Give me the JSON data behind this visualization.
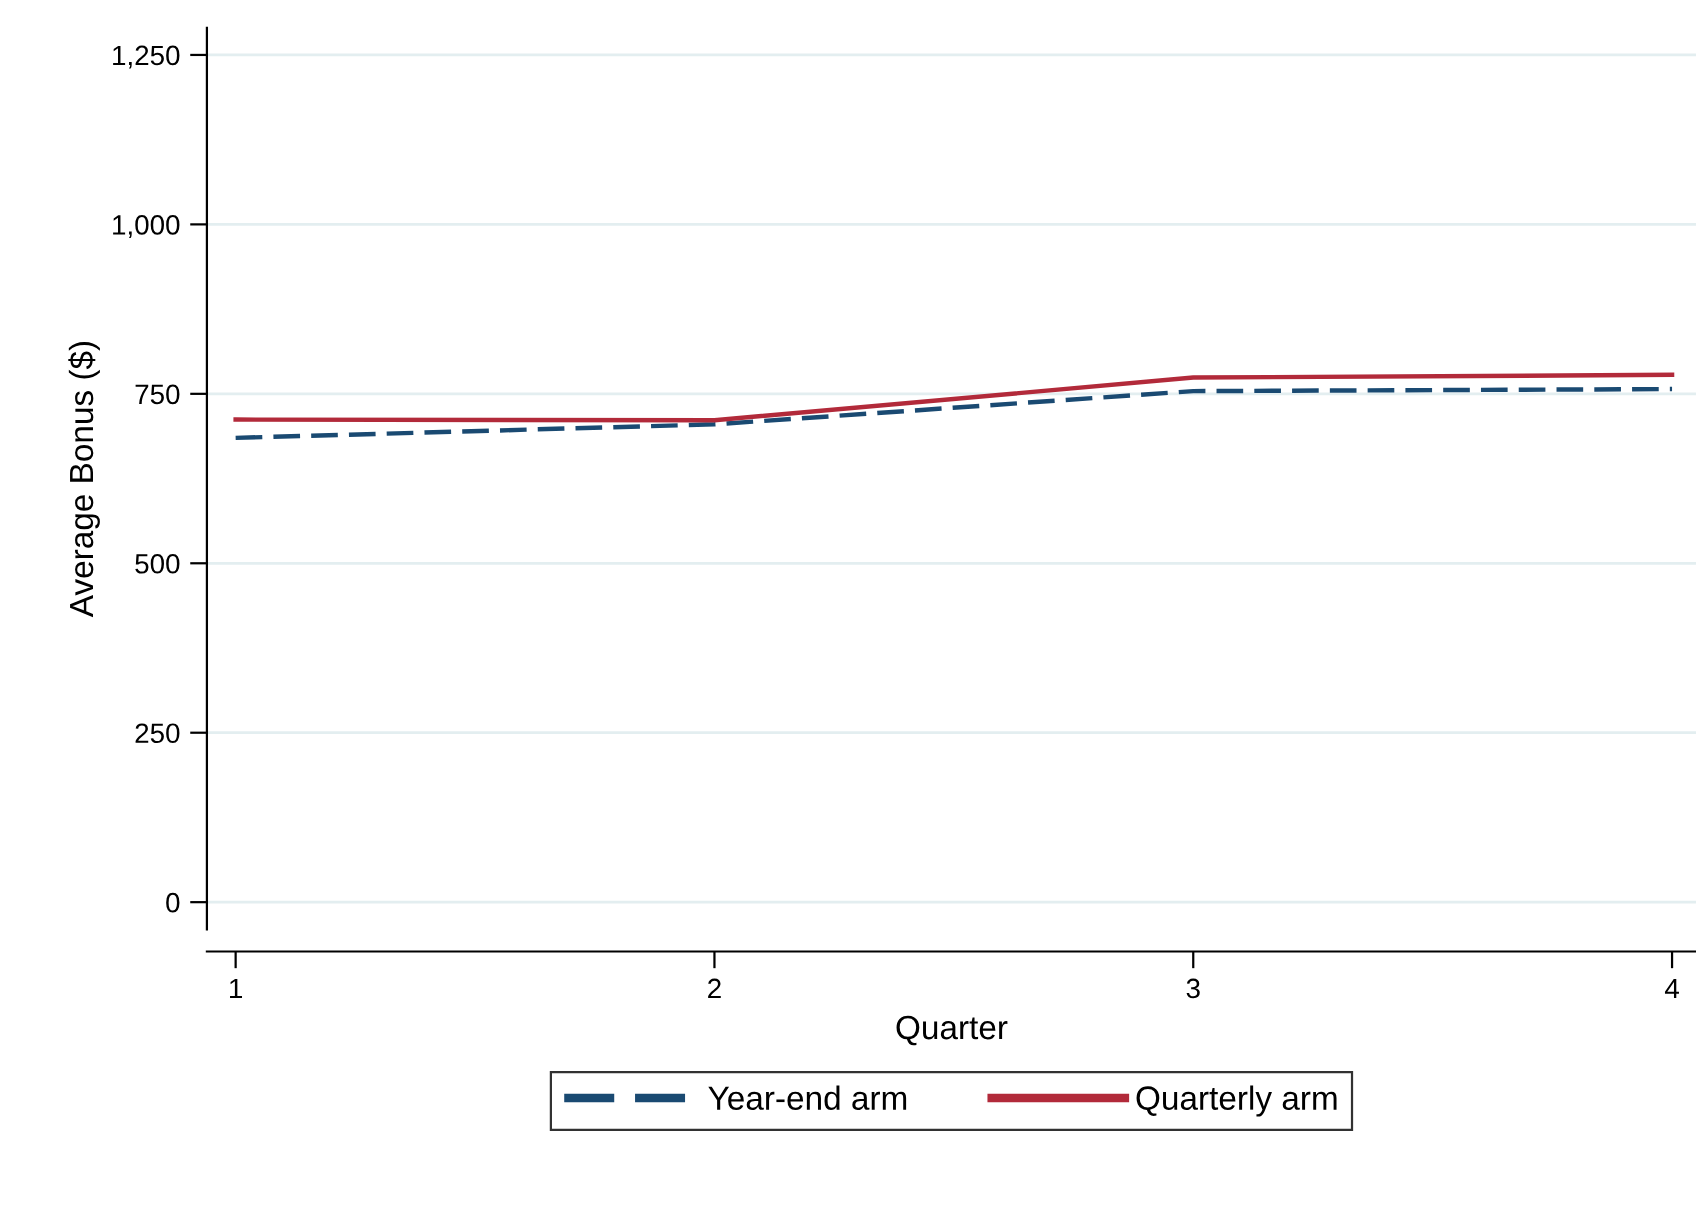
{
  "chart_data": {
    "type": "line",
    "xlabel": "Quarter",
    "ylabel": "Average Bonus ($)",
    "x": [
      1,
      2,
      3,
      4
    ],
    "series": [
      {
        "name": "Year-end arm",
        "color": "#1a4a72",
        "line_style": "dashed",
        "values": [
          685,
          705,
          754,
          757
        ]
      },
      {
        "name": "Quarterly arm",
        "color": "#b22a3a",
        "line_style": "solid",
        "values": [
          712,
          711,
          774,
          778
        ]
      }
    ],
    "xlim": [
      0.94,
      4.05
    ],
    "xticks": [
      1,
      2,
      3,
      4
    ],
    "ylim": [
      -40,
      1290
    ],
    "yticks": [
      0,
      {
        "value": 250,
        "label": "250"
      },
      {
        "value": 500,
        "label": "500"
      },
      {
        "value": 750,
        "label": "750"
      },
      {
        "value": 1000,
        "label": "1,000"
      },
      {
        "value": 1250,
        "label": "1,250"
      }
    ],
    "grid": "y",
    "legend": "bottom",
    "marker": "none"
  }
}
